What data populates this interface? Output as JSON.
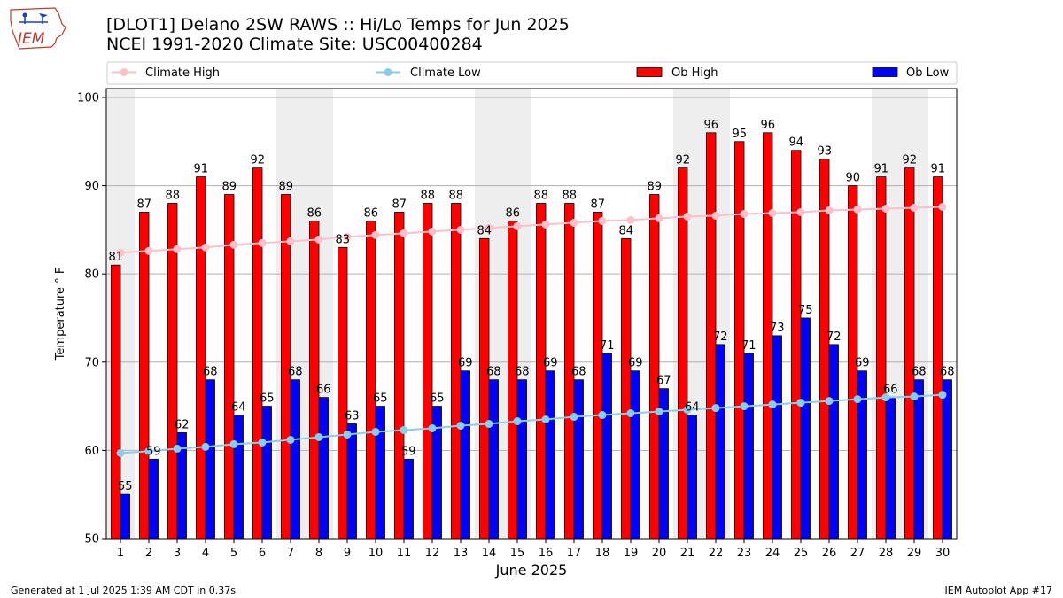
{
  "title_line1": "[DLOT1] Delano 2SW RAWS :: Hi/Lo Temps for Jun 2025",
  "title_line2": "NCEI 1991-2020 Climate Site: USC00400284",
  "logo_text": "IEM",
  "footer_left": "Generated at 1 Jul 2025 1:39 AM CDT in 0.37s",
  "footer_right": "IEM Autoplot App #17",
  "colors": {
    "ob_high": "#ff0000",
    "ob_low": "#0000ff",
    "climate_high": "#ffc0cb",
    "climate_low": "#87ceeb",
    "weekend_shade": "#eeeeee",
    "grid": "#b0b0b0"
  },
  "chart_data": {
    "type": "bar",
    "xlabel": "June 2025",
    "ylabel": "Temperature ° F",
    "ylim": [
      50,
      101
    ],
    "yticks": [
      50,
      60,
      70,
      80,
      90,
      100
    ],
    "grid": "horizontal",
    "legend": "top, above plot",
    "x": [
      1,
      2,
      3,
      4,
      5,
      6,
      7,
      8,
      9,
      10,
      11,
      12,
      13,
      14,
      15,
      16,
      17,
      18,
      19,
      20,
      21,
      22,
      23,
      24,
      25,
      26,
      27,
      28,
      29,
      30
    ],
    "shaded_days": [
      1,
      7,
      8,
      14,
      15,
      21,
      22,
      28,
      29
    ],
    "series": [
      {
        "name": "Climate High",
        "kind": "line",
        "values": [
          82.4,
          82.6,
          82.8,
          83.0,
          83.3,
          83.5,
          83.7,
          83.9,
          84.2,
          84.4,
          84.6,
          84.8,
          85.0,
          85.2,
          85.4,
          85.6,
          85.8,
          86.0,
          86.1,
          86.3,
          86.5,
          86.6,
          86.8,
          86.9,
          87.0,
          87.2,
          87.3,
          87.4,
          87.5,
          87.6
        ]
      },
      {
        "name": "Climate Low",
        "kind": "line",
        "values": [
          59.7,
          59.9,
          60.2,
          60.4,
          60.7,
          60.9,
          61.2,
          61.5,
          61.8,
          62.1,
          62.3,
          62.5,
          62.8,
          63.0,
          63.3,
          63.5,
          63.8,
          64.0,
          64.2,
          64.4,
          64.6,
          64.8,
          65.0,
          65.2,
          65.4,
          65.6,
          65.8,
          66.0,
          66.1,
          66.3
        ]
      },
      {
        "name": "Ob High",
        "kind": "bar",
        "values": [
          81,
          87,
          88,
          91,
          89,
          92,
          89,
          86,
          83,
          86,
          87,
          88,
          88,
          84,
          86,
          88,
          88,
          87,
          84,
          89,
          92,
          96,
          95,
          96,
          94,
          93,
          90,
          91,
          92,
          91
        ]
      },
      {
        "name": "Ob Low",
        "kind": "bar",
        "values": [
          55,
          59,
          62,
          68,
          64,
          65,
          68,
          66,
          63,
          65,
          59,
          65,
          69,
          68,
          68,
          69,
          68,
          71,
          69,
          67,
          64,
          72,
          71,
          73,
          75,
          72,
          69,
          66,
          68,
          68
        ]
      }
    ]
  }
}
